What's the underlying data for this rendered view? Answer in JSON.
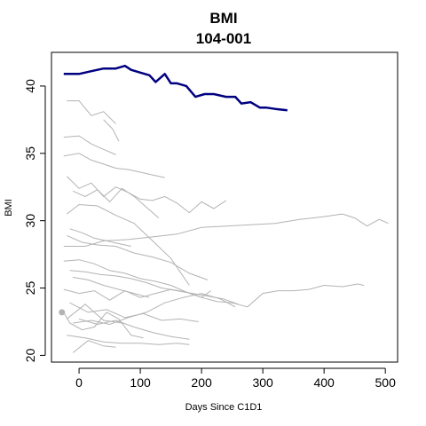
{
  "chart_data": {
    "type": "line",
    "title": "BMI",
    "subtitle": "104-001",
    "xlabel": "Days Since C1D1",
    "ylabel": "BMI",
    "xlim": [
      -45,
      520
    ],
    "ylim": [
      19.5,
      42.5
    ],
    "x_ticks": [
      0,
      100,
      200,
      300,
      400,
      500
    ],
    "y_ticks": [
      20,
      25,
      30,
      35,
      40
    ],
    "grid": false,
    "legend": "none",
    "colors": {
      "highlight": "#000080",
      "background_series": "#b3b3b3"
    },
    "highlight_series": {
      "name": "104-001",
      "x": [
        -25,
        0,
        20,
        40,
        60,
        75,
        85,
        100,
        115,
        125,
        140,
        150,
        160,
        175,
        190,
        205,
        220,
        240,
        255,
        265,
        280,
        295,
        305,
        320,
        340
      ],
      "y": [
        40.9,
        40.9,
        41.1,
        41.3,
        41.3,
        41.5,
        41.2,
        41.0,
        40.8,
        40.3,
        40.9,
        40.2,
        40.2,
        40.0,
        39.2,
        39.4,
        39.4,
        39.2,
        39.2,
        38.7,
        38.8,
        38.4,
        38.4,
        38.3,
        38.2
      ]
    },
    "background_series": [
      {
        "x": [
          -20,
          0,
          20,
          40,
          60
        ],
        "y": [
          38.9,
          38.9,
          37.8,
          38.1,
          37.2
        ]
      },
      {
        "x": [
          -25,
          0,
          20,
          40,
          60
        ],
        "y": [
          36.2,
          36.3,
          35.7,
          35.3,
          34.9
        ]
      },
      {
        "x": [
          40,
          55,
          65
        ],
        "y": [
          37.5,
          36.8,
          35.9
        ]
      },
      {
        "x": [
          -25,
          0,
          20,
          40,
          60,
          80,
          100,
          120,
          140
        ],
        "y": [
          34.8,
          35.0,
          34.5,
          34.2,
          33.9,
          33.8,
          33.6,
          33.4,
          33.2
        ]
      },
      {
        "x": [
          -20,
          0,
          20,
          40,
          60,
          80,
          100,
          120,
          140,
          160,
          180,
          200,
          220,
          240
        ],
        "y": [
          33.3,
          32.4,
          32.8,
          31.8,
          32.5,
          32.1,
          31.6,
          31.5,
          31.8,
          31.3,
          30.6,
          31.4,
          30.9,
          31.5
        ]
      },
      {
        "x": [
          -10,
          10,
          30,
          50,
          70,
          90,
          110,
          130
        ],
        "y": [
          32.2,
          31.8,
          32.3,
          31.4,
          32.4,
          31.8,
          31.0,
          30.2
        ]
      },
      {
        "x": [
          -20,
          0,
          30,
          60,
          90,
          120,
          150,
          180
        ],
        "y": [
          30.5,
          31.2,
          31.1,
          30.4,
          29.8,
          28.5,
          27.2,
          25.2
        ]
      },
      {
        "x": [
          -15,
          5,
          25,
          45,
          65,
          85
        ],
        "y": [
          29.4,
          29.1,
          28.7,
          28.5,
          28.3,
          28.1
        ]
      },
      {
        "x": [
          -25,
          10,
          40,
          80,
          120,
          160,
          200,
          240,
          280,
          320,
          360,
          400,
          430,
          450,
          470,
          490,
          505
        ],
        "y": [
          28.1,
          28.1,
          28.5,
          28.6,
          28.8,
          29.0,
          29.5,
          29.6,
          29.7,
          29.8,
          30.1,
          30.3,
          30.5,
          30.2,
          29.6,
          30.1,
          29.8
        ]
      },
      {
        "x": [
          -20,
          5,
          30,
          60,
          90,
          120,
          150,
          180,
          210
        ],
        "y": [
          28.9,
          28.4,
          28.2,
          28.1,
          27.6,
          27.3,
          26.9,
          26.1,
          25.6
        ]
      },
      {
        "x": [
          -25,
          0,
          25,
          50,
          75,
          100,
          125,
          150,
          175,
          200,
          225,
          250,
          275,
          300,
          325,
          350,
          375,
          400,
          430,
          455,
          465
        ],
        "y": [
          27.0,
          27.1,
          26.8,
          26.3,
          26.1,
          25.7,
          25.5,
          25.2,
          24.7,
          24.3,
          24.0,
          23.9,
          23.6,
          24.6,
          24.8,
          24.8,
          24.9,
          25.2,
          25.1,
          25.3,
          25.2
        ]
      },
      {
        "x": [
          -15,
          10,
          35,
          60,
          85,
          110,
          135,
          160,
          185,
          210,
          235,
          260
        ],
        "y": [
          26.3,
          26.2,
          26.0,
          25.9,
          25.7,
          25.4,
          25.0,
          24.8,
          24.6,
          24.4,
          24.2,
          23.8
        ]
      },
      {
        "x": [
          -10,
          15,
          40,
          65,
          90,
          115
        ],
        "y": [
          25.8,
          25.6,
          25.2,
          24.9,
          24.6,
          24.3
        ]
      },
      {
        "x": [
          -25,
          0,
          25,
          50,
          75,
          100,
          125,
          150,
          175,
          200,
          215
        ],
        "y": [
          24.9,
          24.6,
          24.8,
          24.1,
          24.8,
          24.3,
          24.6,
          24.9,
          24.7,
          24.3,
          24.8
        ]
      },
      {
        "x": [
          -20,
          10,
          40,
          70
        ],
        "y": [
          22.7,
          23.8,
          22.6,
          22.4
        ]
      },
      {
        "x": [
          -15,
          15,
          45,
          75,
          105,
          135,
          165,
          195
        ],
        "y": [
          23.9,
          23.2,
          23.4,
          22.8,
          23.1,
          22.6,
          22.7,
          22.5
        ]
      },
      {
        "x": [
          -10,
          20,
          50,
          80,
          110,
          140,
          170,
          200,
          230,
          255
        ],
        "y": [
          22.4,
          22.6,
          22.3,
          22.8,
          23.2,
          23.9,
          24.3,
          24.6,
          24.2,
          23.6
        ]
      },
      {
        "x": [
          -20,
          10,
          40,
          70,
          100,
          130,
          160,
          180
        ],
        "y": [
          21.5,
          21.3,
          21.0,
          20.9,
          20.9,
          20.8,
          20.9,
          20.8
        ]
      },
      {
        "x": [
          -10,
          15,
          40,
          60
        ],
        "y": [
          20.2,
          21.1,
          20.7,
          20.6
        ]
      },
      {
        "x": [
          -25,
          -15,
          5,
          25,
          45,
          65,
          85,
          105
        ],
        "y": [
          23.2,
          22.4,
          21.9,
          22.1,
          23.2,
          22.7,
          21.5,
          21.3
        ]
      },
      {
        "x": [
          0,
          30,
          60,
          90,
          120,
          150,
          180
        ],
        "y": [
          22.7,
          22.3,
          22.6,
          22.1,
          21.7,
          21.4,
          21.2
        ]
      }
    ],
    "background_point": {
      "x": -28,
      "y": 23.2
    }
  }
}
